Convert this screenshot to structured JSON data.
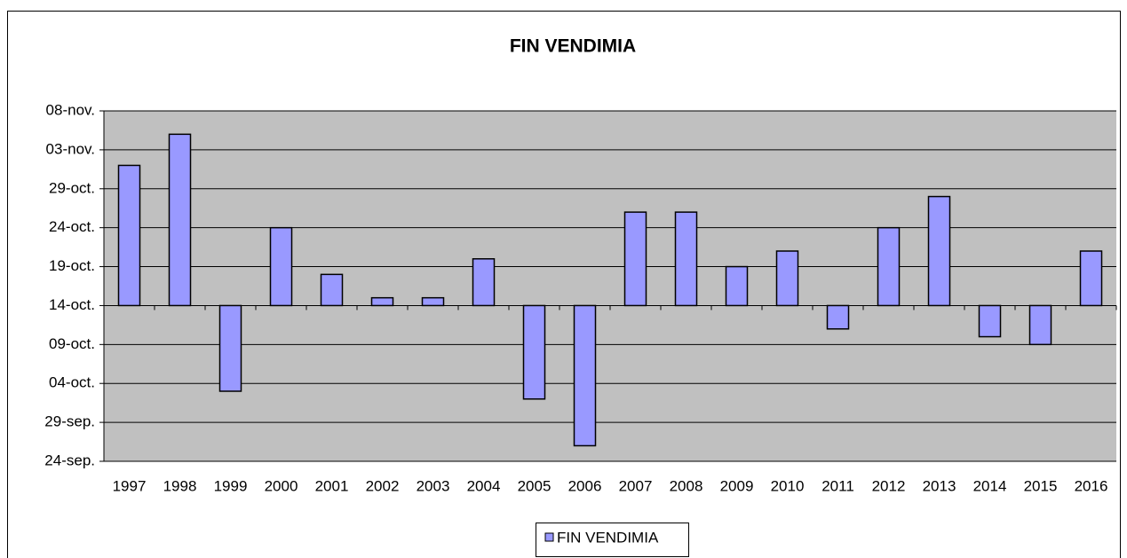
{
  "chart_data": {
    "type": "bar",
    "title": "FIN VENDIMIA",
    "categories": [
      "1997",
      "1998",
      "1999",
      "2000",
      "2001",
      "2002",
      "2003",
      "2004",
      "2005",
      "2006",
      "2007",
      "2008",
      "2009",
      "2010",
      "2011",
      "2012",
      "2013",
      "2014",
      "2015",
      "2016"
    ],
    "series": [
      {
        "name": "FIN VENDIMIA",
        "color": "#9999ff",
        "values": [
          305,
          309,
          276,
          297,
          291,
          288,
          288,
          293,
          275,
          269,
          299,
          299,
          292,
          294,
          284,
          297,
          301,
          283,
          282,
          294
        ]
      }
    ],
    "ylim": [
      267,
      312
    ],
    "yticks": [
      {
        "value": 267,
        "label": "24-sep."
      },
      {
        "value": 272,
        "label": "29-sep."
      },
      {
        "value": 277,
        "label": "04-oct."
      },
      {
        "value": 282,
        "label": "09-oct."
      },
      {
        "value": 287,
        "label": "14-oct."
      },
      {
        "value": 292,
        "label": "19-oct."
      },
      {
        "value": 297,
        "label": "24-oct."
      },
      {
        "value": 302,
        "label": "29-oct."
      },
      {
        "value": 307,
        "label": "03-nov."
      },
      {
        "value": 312,
        "label": "08-nov."
      }
    ],
    "xaxis_crosses": 287,
    "grid": true,
    "legend": "bottom"
  }
}
